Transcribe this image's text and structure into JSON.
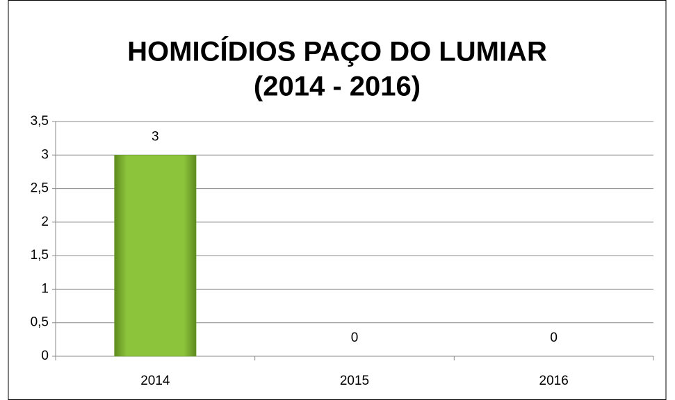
{
  "chart_data": {
    "type": "bar",
    "title": "HOMICÍDIOS PAÇO DO LUMIAR",
    "subtitle": "(2014 - 2016)",
    "categories": [
      "2014",
      "2015",
      "2016"
    ],
    "values": [
      3,
      0,
      0
    ],
    "color": "#8cc43c",
    "ylim": [
      0,
      3.5
    ],
    "yticks": [
      0,
      {
        "value": 0.5,
        "label": "0,5"
      },
      1,
      {
        "value": 1.5,
        "label": "1,5"
      },
      2,
      {
        "value": 2.5,
        "label": "2,5"
      },
      3,
      {
        "value": 3.5,
        "label": "3,5"
      }
    ],
    "grid": true
  }
}
